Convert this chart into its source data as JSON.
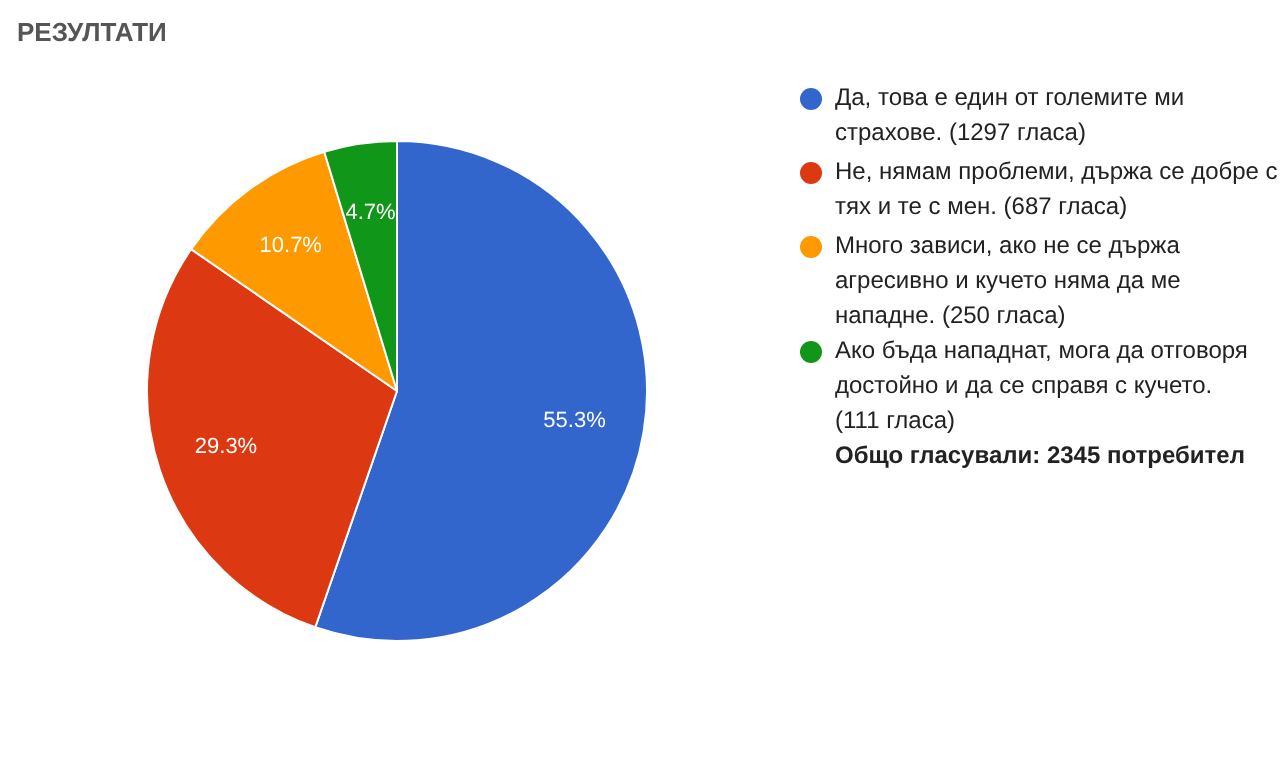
{
  "chart_data": {
    "type": "pie",
    "title": "РЕЗУЛТАТИ",
    "categories": [
      "Да, това е един от големите ми страхове. (1297 гласа)",
      "Не, нямам проблеми, държа се добре с тях и те с мен. (687 гласа)",
      "Много зависи, ако не се държа агресивно и кучето няма да ме нападне. (250 гласа)",
      "Ако бъда нападнат, мога да отговоря достойно и да се справя с кучето. (111 гласа)"
    ],
    "values": [
      55.3,
      29.3,
      10.7,
      4.7
    ],
    "colors": [
      "#3366cc",
      "#dc3912",
      "#ff9900",
      "#109618"
    ],
    "value_labels": [
      "55.3%",
      "29.3%",
      "10.7%",
      "4.7%"
    ],
    "legend": "right",
    "annotations": [
      "Общо гласували: 2345 потребител"
    ]
  }
}
